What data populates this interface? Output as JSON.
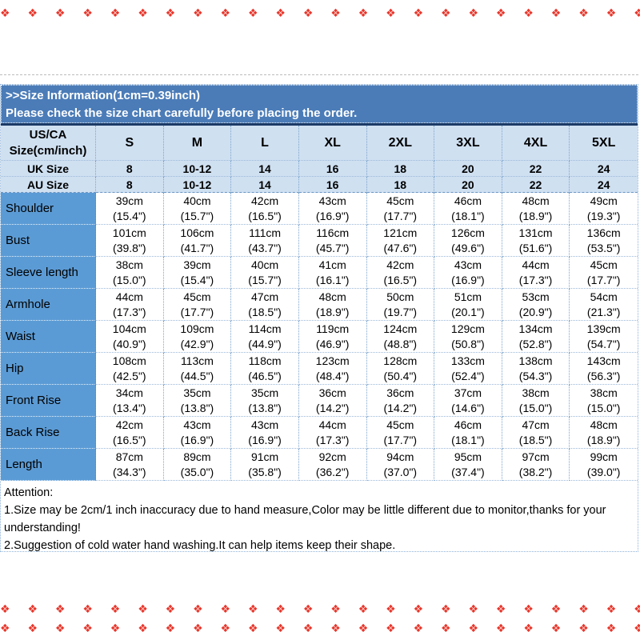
{
  "header": {
    "title": ">>Size Information(1cm=0.39inch)",
    "subtitle": "Please check the size chart carefully before placing the order."
  },
  "size_table": {
    "corner": {
      "line1": "US/CA",
      "line2": "Size(cm/inch)"
    },
    "columns": [
      "S",
      "M",
      "L",
      "XL",
      "2XL",
      "3XL",
      "4XL",
      "5XL"
    ],
    "region_rows": [
      {
        "label": "UK Size",
        "values": [
          "8",
          "10-12",
          "14",
          "16",
          "18",
          "20",
          "22",
          "24"
        ]
      },
      {
        "label": "AU Size",
        "values": [
          "8",
          "10-12",
          "14",
          "16",
          "18",
          "20",
          "22",
          "24"
        ]
      }
    ],
    "measurement_rows": [
      {
        "label": "Shoulder",
        "cm": [
          "39cm",
          "40cm",
          "42cm",
          "43cm",
          "45cm",
          "46cm",
          "48cm",
          "49cm"
        ],
        "inch": [
          "(15.4\")",
          "(15.7\")",
          "(16.5\")",
          "(16.9\")",
          "(17.7\")",
          "(18.1\")",
          "(18.9\")",
          "(19.3\")"
        ]
      },
      {
        "label": "Bust",
        "cm": [
          "101cm",
          "106cm",
          "111cm",
          "116cm",
          "121cm",
          "126cm",
          "131cm",
          "136cm"
        ],
        "inch": [
          "(39.8\")",
          "(41.7\")",
          "(43.7\")",
          "(45.7\")",
          "(47.6\")",
          "(49.6\")",
          "(51.6\")",
          "(53.5\")"
        ]
      },
      {
        "label": "Sleeve length",
        "cm": [
          "38cm",
          "39cm",
          "40cm",
          "41cm",
          "42cm",
          "43cm",
          "44cm",
          "45cm"
        ],
        "inch": [
          "(15.0\")",
          "(15.4\")",
          "(15.7\")",
          "(16.1\")",
          "(16.5\")",
          "(16.9\")",
          "(17.3\")",
          "(17.7\")"
        ]
      },
      {
        "label": "Armhole",
        "cm": [
          "44cm",
          "45cm",
          "47cm",
          "48cm",
          "50cm",
          "51cm",
          "53cm",
          "54cm"
        ],
        "inch": [
          "(17.3\")",
          "(17.7\")",
          "(18.5\")",
          "(18.9\")",
          "(19.7\")",
          "(20.1\")",
          "(20.9\")",
          "(21.3\")"
        ]
      },
      {
        "label": "Waist",
        "cm": [
          "104cm",
          "109cm",
          "114cm",
          "119cm",
          "124cm",
          "129cm",
          "134cm",
          "139cm"
        ],
        "inch": [
          "(40.9\")",
          "(42.9\")",
          "(44.9\")",
          "(46.9\")",
          "(48.8\")",
          "(50.8\")",
          "(52.8\")",
          "(54.7\")"
        ]
      },
      {
        "label": "Hip",
        "cm": [
          "108cm",
          "113cm",
          "118cm",
          "123cm",
          "128cm",
          "133cm",
          "138cm",
          "143cm"
        ],
        "inch": [
          "(42.5\")",
          "(44.5\")",
          "(46.5\")",
          "(48.4\")",
          "(50.4\")",
          "(52.4\")",
          "(54.3\")",
          "(56.3\")"
        ]
      },
      {
        "label": "Front Rise",
        "cm": [
          "34cm",
          "35cm",
          "35cm",
          "36cm",
          "36cm",
          "37cm",
          "38cm",
          "38cm"
        ],
        "inch": [
          "(13.4\")",
          "(13.8\")",
          "(13.8\")",
          "(14.2\")",
          "(14.2\")",
          "(14.6\")",
          "(15.0\")",
          "(15.0\")"
        ]
      },
      {
        "label": "Back Rise",
        "cm": [
          "42cm",
          "43cm",
          "43cm",
          "44cm",
          "45cm",
          "46cm",
          "47cm",
          "48cm"
        ],
        "inch": [
          "(16.5\")",
          "(16.9\")",
          "(16.9\")",
          "(17.3\")",
          "(17.7\")",
          "(18.1\")",
          "(18.5\")",
          "(18.9\")"
        ]
      },
      {
        "label": "Length",
        "cm": [
          "87cm",
          "89cm",
          "91cm",
          "92cm",
          "94cm",
          "95cm",
          "97cm",
          "99cm"
        ],
        "inch": [
          "(34.3\")",
          "(35.0\")",
          "(35.8\")",
          "(36.2\")",
          "(37.0\")",
          "(37.4\")",
          "(38.2\")",
          "(39.0\")"
        ]
      }
    ]
  },
  "attention": {
    "title": "Attention:",
    "lines": [
      "1.Size may be 2cm/1 inch inaccuracy due to hand measure,Color may be little different due to monitor,thanks for your understanding!",
      "2.Suggestion of cold water hand washing.It can help items keep their shape."
    ]
  },
  "decor": {
    "ornament_glyph": "❖",
    "color": "#e8372c"
  },
  "colors": {
    "header_blue": "#4b7cb8",
    "header_row_bg": "#cfe0f1",
    "label_column_bg": "#5b9bd5",
    "table_top_border": "#1b3a66",
    "decor_red": "#e8372c"
  }
}
